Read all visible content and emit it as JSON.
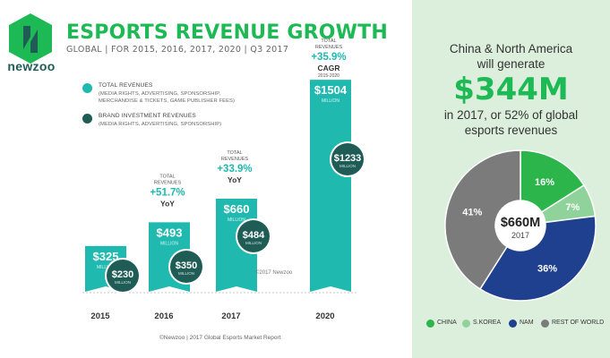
{
  "brand": {
    "name": "newzoo"
  },
  "header": {
    "title": "ESPORTS REVENUE GROWTH",
    "subtitle": "GLOBAL | FOR 2015, 2016, 2017, 2020 | Q3 2017"
  },
  "legend": [
    {
      "title": "TOTAL REVENUES",
      "sub1": "(MEDIA RIGHTS, ADVERTISING, SPONSORSHIP,",
      "sub2": "MERCHANDISE & TICKETS, GAME PUBLISHER FEES)",
      "color": "#1fb9b0"
    },
    {
      "title": "BRAND INVESTMENT REVENUES",
      "sub1": "(MEDIA RIGHTS, ADVERTISING, SPONSORSHIP)",
      "sub2": "",
      "color": "#1f5c55"
    }
  ],
  "colors": {
    "total": "#1fb9b0",
    "brand": "#1f5c55",
    "green": "#1db954"
  },
  "chart_data": [
    {
      "type": "bar",
      "categories": [
        "2015",
        "2016",
        "2017",
        "2020"
      ],
      "series": [
        {
          "name": "TOTAL REVENUES",
          "values": [
            325,
            493,
            660,
            1504
          ],
          "labels": [
            "$325",
            "$493",
            "$660",
            "$1504"
          ]
        },
        {
          "name": "BRAND INVESTMENT REVENUES",
          "values": [
            230,
            350,
            484,
            1233
          ],
          "labels": [
            "$230",
            "$350",
            "$484",
            "$1233"
          ]
        }
      ],
      "unit_label": "MILLION",
      "growth": [
        null,
        {
          "top": "TOTAL",
          "top2": "REVENUES",
          "pct": "+51.7%",
          "suffix": "YoY",
          "extra": ""
        },
        {
          "top": "TOTAL",
          "top2": "REVENUES",
          "pct": "+33.9%",
          "suffix": "YoY",
          "extra": ""
        },
        {
          "top": "TOTAL",
          "top2": "REVENUES",
          "pct": "+35.9%",
          "suffix": "CAGR",
          "extra": "2015-2020"
        }
      ],
      "title": "ESPORTS REVENUE GROWTH"
    },
    {
      "type": "pie",
      "categories": [
        "CHINA",
        "S.KOREA",
        "NAM",
        "REST OF WORLD"
      ],
      "values": [
        16,
        7,
        36,
        41
      ],
      "labels": [
        "16%",
        "7%",
        "36%",
        "41%"
      ],
      "colors": [
        "#2bb54a",
        "#8fd39a",
        "#1f3f8f",
        "#7b7b7b"
      ],
      "center_value": "$660M",
      "center_year": "2017"
    }
  ],
  "watermark": "©2017 Newzoo",
  "copyright": "©Newzoo | 2017 Global Esports Market Report",
  "right_panel": {
    "line1": "China & North America",
    "line2": "will generate",
    "big": "$344M",
    "line3": "in 2017, or 52% of global",
    "line4": "esports revenues"
  }
}
